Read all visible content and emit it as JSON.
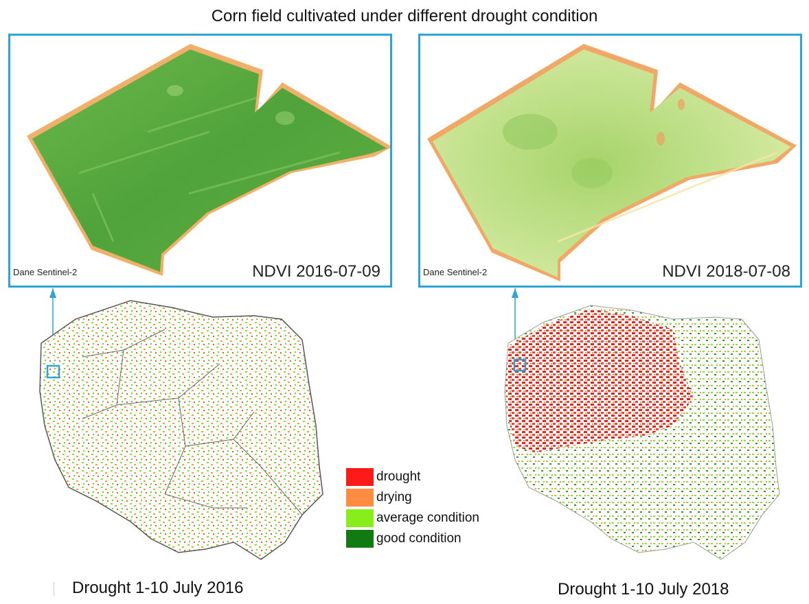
{
  "title": "Corn field cultivated under different drought condition",
  "panels": [
    {
      "credit": "Dane Sentinel-2",
      "ndvi_label": "NDVI 2016-07-09"
    },
    {
      "credit": "Dane Sentinel-2",
      "ndvi_label": "NDVI 2018-07-08"
    }
  ],
  "maps": [
    {
      "caption": "Drought 1-10 July 2016"
    },
    {
      "caption": "Drought 1-10 July 2018"
    }
  ],
  "legend": [
    {
      "label": "drought",
      "color": "#ff1a1a"
    },
    {
      "label": "drying",
      "color": "#ff8c40"
    },
    {
      "label": "average condition",
      "color": "#88ee1a"
    },
    {
      "label": "good condition",
      "color": "#127a12"
    }
  ],
  "colors": {
    "frame": "#2ea3d4",
    "field_2016": "#5cac3c",
    "field_2018": "#b9dc80",
    "field_edge": "#f0a060"
  }
}
